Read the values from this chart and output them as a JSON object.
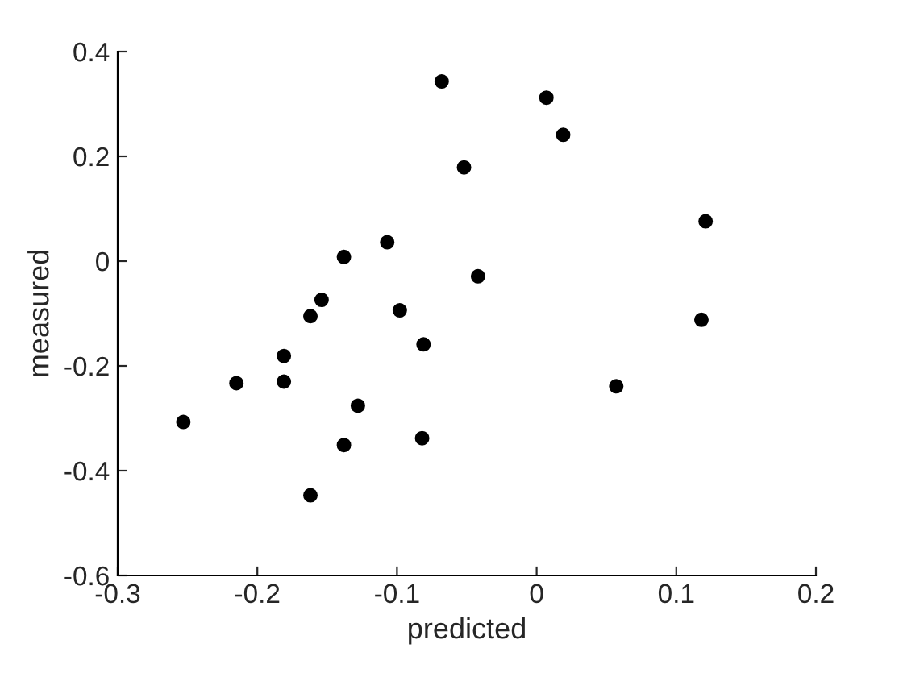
{
  "chart_data": {
    "type": "scatter",
    "xlabel": "predicted",
    "ylabel": "measured",
    "xlim": [
      -0.3,
      0.2
    ],
    "ylim": [
      -0.6,
      0.4
    ],
    "xticks": [
      -0.3,
      -0.2,
      -0.1,
      0,
      0.1,
      0.2
    ],
    "yticks": [
      -0.6,
      -0.4,
      -0.2,
      0,
      0.2,
      0.4
    ],
    "grid": false,
    "marker": "circle",
    "series": [
      {
        "color": "#000000",
        "x": [
          -0.068,
          -0.052,
          -0.107,
          -0.138,
          -0.042,
          -0.154,
          -0.162,
          -0.098,
          -0.081,
          -0.181,
          -0.215,
          -0.181,
          -0.253,
          -0.128,
          -0.138,
          -0.082,
          -0.162,
          0.007,
          0.019,
          0.121,
          0.118,
          0.057
        ],
        "values": [
          0.343,
          0.179,
          0.036,
          0.008,
          -0.029,
          -0.074,
          -0.105,
          -0.094,
          -0.159,
          -0.181,
          -0.233,
          -0.23,
          -0.307,
          -0.276,
          -0.351,
          -0.338,
          -0.447,
          0.312,
          0.241,
          0.076,
          -0.112,
          -0.239
        ]
      }
    ]
  }
}
